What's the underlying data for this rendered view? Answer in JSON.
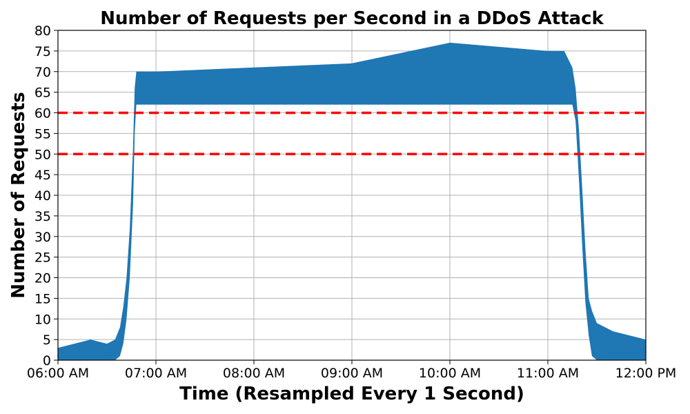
{
  "chart_data": {
    "type": "line",
    "title": "Number of Requests per Second in a DDoS Attack",
    "xlabel": "Time (Resampled Every 1 Second)",
    "ylabel": "Number of Requests",
    "xlim": [
      "06:00 AM",
      "12:00 PM"
    ],
    "x_tick_labels": [
      "06:00 AM",
      "07:00 AM",
      "08:00 AM",
      "09:00 AM",
      "10:00 AM",
      "11:00 AM",
      "12:00 PM"
    ],
    "ylim": [
      0,
      80
    ],
    "y_ticks": [
      0,
      5,
      10,
      15,
      20,
      25,
      30,
      35,
      40,
      45,
      50,
      55,
      60,
      65,
      70,
      75,
      80
    ],
    "grid": true,
    "series": [
      {
        "color": "#1f77b4",
        "x": [
          "06:00 AM",
          "06:10 AM",
          "06:20 AM",
          "06:30 AM",
          "06:35 AM",
          "06:38 AM",
          "06:40 AM",
          "06:42 AM",
          "06:44 AM",
          "06:46 AM",
          "06:47 AM",
          "06:48 AM",
          "06:50 AM",
          "07:00 AM",
          "08:00 AM",
          "09:00 AM",
          "10:00 AM",
          "11:00 AM",
          "11:10 AM",
          "11:15 AM",
          "11:17 AM",
          "11:19 AM",
          "11:21 AM",
          "11:23 AM",
          "11:25 AM",
          "11:27 AM",
          "11:30 AM",
          "11:40 AM",
          "12:00 PM"
        ],
        "values": [
          1,
          1,
          1,
          1,
          2,
          4,
          8,
          14,
          25,
          45,
          60,
          66,
          66,
          66,
          66,
          66,
          66,
          66,
          66,
          66,
          62,
          50,
          35,
          20,
          10,
          5,
          3,
          2,
          2
        ],
        "envelope_min": [
          0,
          0,
          0,
          0,
          0,
          1,
          4,
          10,
          20,
          38,
          55,
          62,
          62,
          62,
          62,
          62,
          62,
          62,
          62,
          62,
          58,
          44,
          28,
          14,
          6,
          1,
          0,
          0,
          0
        ],
        "envelope_max": [
          3,
          4,
          5,
          4,
          5,
          8,
          13,
          20,
          32,
          52,
          66,
          70,
          70,
          70,
          71,
          72,
          77,
          75,
          75,
          71,
          66,
          56,
          42,
          27,
          15,
          12,
          9,
          7,
          5
        ]
      }
    ],
    "reference_lines": [
      {
        "y": 60,
        "color": "#ff0000",
        "style": "dashed"
      },
      {
        "y": 50,
        "color": "#ff0000",
        "style": "dashed"
      }
    ]
  }
}
